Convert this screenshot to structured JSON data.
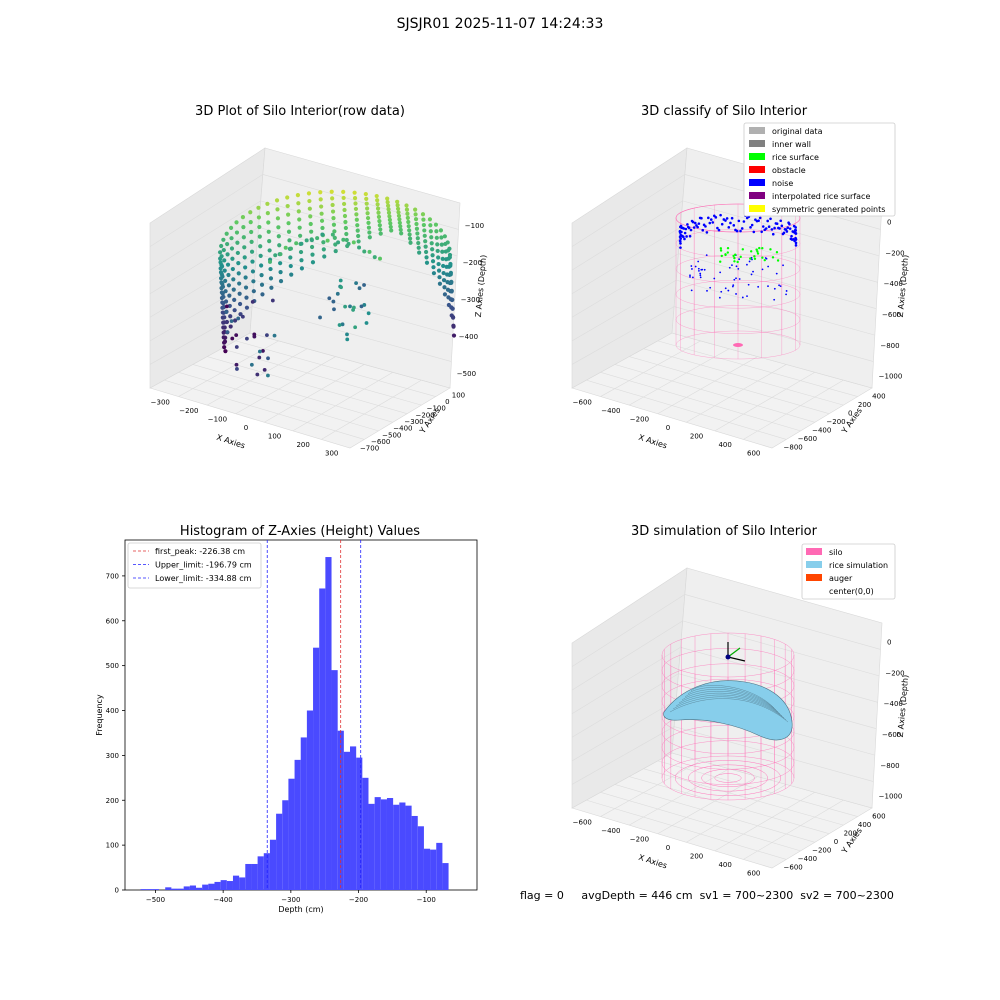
{
  "suptitle": "SJSJR01 2025-11-07 14:24:33",
  "footer": {
    "flag": "flag = 0",
    "avg_depth": "avgDepth = 446 cm",
    "sv1": "sv1 = 700~2300",
    "sv2": "sv2 = 700~2300"
  },
  "colors": {
    "histogram_bars": "#4a4aff",
    "first_peak_line": "#e03030",
    "limit_lines": "#2020ff",
    "silo": "#ff69b4",
    "rice_simulation": "#87ceeb",
    "auger": "#ff4500",
    "noise": "#0000ff",
    "rice_surface": "#00ff00",
    "original_data": "#b0b0b0",
    "inner_wall": "#808080",
    "obstacle": "#ff0000",
    "interpolated_rice_surface": "#800080",
    "symmetric_generated_points": "#ffff00"
  },
  "chart_data": [
    {
      "type": "scatter",
      "projection": "3d",
      "title": "3D Plot of Silo Interior(row data)",
      "xlabel": "X Axies",
      "ylabel": "Y Axies",
      "zlabel": "Z Axies (Depth)",
      "xticks": [
        "−300",
        "−200",
        "−100",
        "0",
        "100",
        "200",
        "300"
      ],
      "yticks": [
        "100",
        "0",
        "−100",
        "−200",
        "−300",
        "−400",
        "−500",
        "−600",
        "−700"
      ],
      "zticks": [
        "−100",
        "−200",
        "−300",
        "−400",
        "−500"
      ],
      "colormap": "viridis",
      "grid": true
    },
    {
      "type": "scatter",
      "projection": "3d",
      "title": "3D classify of Silo Interior",
      "xlabel": "X Axies",
      "ylabel": "Y Axies",
      "zlabel": "Z Axies (Depth)",
      "xticks": [
        "−600",
        "−400",
        "−200",
        "0",
        "200",
        "400",
        "600"
      ],
      "yticks": [
        "400",
        "200",
        "0",
        "−200",
        "−400",
        "−600",
        "−800"
      ],
      "zticks": [
        "0",
        "−200",
        "−400",
        "−600",
        "−800",
        "−1000"
      ],
      "legend": [
        "original data",
        "inner wall",
        "rice surface",
        "obstacle",
        "noise",
        "interpolated rice surface",
        "symmetric generated points"
      ],
      "legend_position": "top-right",
      "grid": true
    },
    {
      "type": "bar",
      "title": "Histogram of Z-Axies (Height) Values",
      "xlabel": "Depth (cm)",
      "ylabel": "Frequency",
      "xlim": [
        -545,
        -25
      ],
      "ylim": [
        0,
        780
      ],
      "xticks": [
        -500,
        -400,
        -300,
        -200,
        -100
      ],
      "xtick_labels": [
        "−500",
        "−400",
        "−300",
        "−200",
        "−100"
      ],
      "yticks": [
        0,
        100,
        200,
        300,
        400,
        500,
        600,
        700
      ],
      "bin_start": -522,
      "bin_width": 9.1,
      "values": [
        2,
        2,
        2,
        0,
        6,
        3,
        3,
        8,
        10,
        5,
        12,
        14,
        18,
        22,
        20,
        32,
        28,
        58,
        58,
        75,
        82,
        112,
        170,
        200,
        248,
        290,
        340,
        400,
        540,
        672,
        742,
        490,
        355,
        308,
        320,
        295,
        250,
        192,
        207,
        202,
        205,
        190,
        195,
        188,
        165,
        142,
        92,
        90,
        105,
        60
      ],
      "vlines": [
        {
          "label": "first_peak: -226.38 cm",
          "x": -226.38,
          "color": "#e03030"
        },
        {
          "label": "Upper_limit: -196.79 cm",
          "x": -196.79,
          "color": "#2020ff"
        },
        {
          "label": "Lower_limit: -334.88 cm",
          "x": -334.88,
          "color": "#2020ff"
        }
      ],
      "legend_position": "top-left"
    },
    {
      "type": "surface",
      "projection": "3d",
      "title": "3D simulation of Silo Interior",
      "xlabel": "X Axies",
      "ylabel": "Y Axies",
      "zlabel": "Z Axies (Depth)",
      "xticks": [
        "−600",
        "−400",
        "−200",
        "0",
        "200",
        "400",
        "600"
      ],
      "yticks": [
        "600",
        "400",
        "200",
        "0",
        "−200",
        "−400",
        "−600"
      ],
      "zticks": [
        "0",
        "−200",
        "−400",
        "−600",
        "−800",
        "−1000"
      ],
      "legend": [
        "silo",
        "rice simulation",
        "auger",
        "center(0,0)"
      ],
      "legend_position": "top-right",
      "grid": true
    }
  ]
}
